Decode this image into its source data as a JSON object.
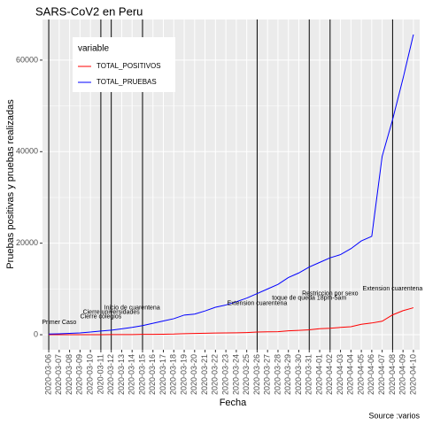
{
  "chart_data": {
    "type": "line",
    "title": "SARS-CoV2 en Peru",
    "x_label": "Fecha",
    "y_label": "Pruebas positivas y pruebas realizadas",
    "caption": "Source :varios",
    "legend_title": "variable",
    "legend_position": "top-left",
    "grid": true,
    "categories": [
      "2020-03-06",
      "2020-03-07",
      "2020-03-08",
      "2020-03-09",
      "2020-03-10",
      "2020-03-11",
      "2020-03-12",
      "2020-03-13",
      "2020-03-14",
      "2020-03-15",
      "2020-03-16",
      "2020-03-17",
      "2020-03-18",
      "2020-03-19",
      "2020-03-20",
      "2020-03-21",
      "2020-03-22",
      "2020-03-23",
      "2020-03-24",
      "2020-03-25",
      "2020-03-26",
      "2020-03-27",
      "2020-03-28",
      "2020-03-29",
      "2020-03-30",
      "2020-03-31",
      "2020-04-01",
      "2020-04-02",
      "2020-04-03",
      "2020-04-04",
      "2020-04-05",
      "2020-04-06",
      "2020-04-07",
      "2020-04-08",
      "2020-04-09",
      "2020-04-10"
    ],
    "series": [
      {
        "name": "TOTAL_POSITIVOS",
        "color": "#ff0000",
        "values": [
          1,
          6,
          7,
          9,
          11,
          17,
          22,
          38,
          43,
          71,
          86,
          117,
          145,
          234,
          263,
          318,
          363,
          395,
          416,
          480,
          580,
          635,
          671,
          852,
          950,
          1065,
          1323,
          1414,
          1595,
          1746,
          2281,
          2561,
          2954,
          4342,
          5256,
          5897
        ]
      },
      {
        "name": "TOTAL_PRUEBAS",
        "color": "#0000ff",
        "values": [
          150,
          200,
          300,
          400,
          600,
          800,
          1000,
          1300,
          1600,
          2000,
          2500,
          3000,
          3500,
          4300,
          4500,
          5200,
          6000,
          6500,
          7200,
          8000,
          9000,
          10000,
          11000,
          12500,
          13500,
          14800,
          15800,
          16800,
          17500,
          18800,
          20500,
          21500,
          39000,
          47000,
          56000,
          65600
        ]
      }
    ],
    "events": [
      "2020-03-06",
      "2020-03-11",
      "2020-03-12",
      "2020-03-15",
      "2020-03-26",
      "2020-03-31",
      "2020-04-02",
      "2020-04-08"
    ],
    "annotations": [
      {
        "label": "Primer Caso",
        "x": "2020-03-07",
        "y": 2700
      },
      {
        "label": "Cierre colegios",
        "x": "2020-03-11",
        "y": 3900
      },
      {
        "label": "Cierre universidades",
        "x": "2020-03-12",
        "y": 4900
      },
      {
        "label": "Inicio de cuarentena",
        "x": "2020-03-14",
        "y": 5900
      },
      {
        "label": "Extension cuarentena",
        "x": "2020-03-26",
        "y": 6800
      },
      {
        "label": "toque de queda 18pm-5am",
        "x": "2020-03-31",
        "y": 8000
      },
      {
        "label": "Restriccion por sexo",
        "x": "2020-04-02",
        "y": 9000
      },
      {
        "label": "Extension cuarentena",
        "x": "2020-04-08",
        "y": 10000
      }
    ],
    "ylim": [
      -3280,
      68880
    ],
    "yticks": [
      0,
      20000,
      40000,
      60000
    ],
    "yminorticks": [
      10000,
      30000,
      50000
    ]
  }
}
